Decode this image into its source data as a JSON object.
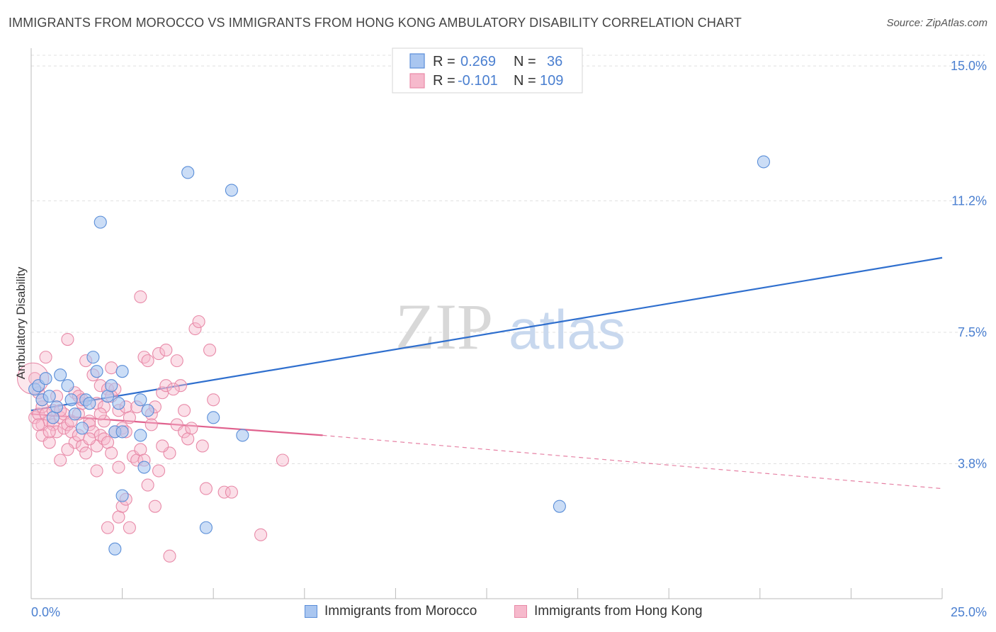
{
  "title": "IMMIGRANTS FROM MOROCCO VS IMMIGRANTS FROM HONG KONG AMBULATORY DISABILITY CORRELATION CHART",
  "source": "Source: ZipAtlas.com",
  "watermark": {
    "zip": "ZIP",
    "atlas": "atlas"
  },
  "legend": {
    "rows": [
      {
        "r_label": "R =",
        "r_value": "0.269",
        "n_label": "N =",
        "n_value": "36"
      },
      {
        "r_label": "R =",
        "r_value": "-0.101",
        "n_label": "N =",
        "n_value": "109"
      }
    ]
  },
  "bottom_legend": {
    "morocco": "Immigrants from Morocco",
    "hongkong": "Immigrants from Hong Kong"
  },
  "colors": {
    "morocco_fill": "#a9c6f0",
    "morocco_stroke": "#5a8ed8",
    "morocco_line": "#2f6fce",
    "hongkong_fill": "#f6b9cc",
    "hongkong_stroke": "#e88aa8",
    "hongkong_line": "#e0628e",
    "tick_text": "#4a7fd0",
    "grid": "#e0e0e0"
  },
  "chart_data": {
    "type": "scatter",
    "title": "IMMIGRANTS FROM MOROCCO VS IMMIGRANTS FROM HONG KONG AMBULATORY DISABILITY CORRELATION CHART",
    "ylabel": "Ambulatory Disability",
    "xlabel": "",
    "xlim": [
      0,
      25
    ],
    "ylim": [
      0,
      15.5
    ],
    "x_tick_labels": [
      "0.0%",
      "25.0%"
    ],
    "y_ticks": [
      3.8,
      7.5,
      11.2,
      15.0
    ],
    "y_tick_labels": [
      "3.8%",
      "7.5%",
      "11.2%",
      "15.0%"
    ],
    "grid": true,
    "legend_position": "top-center",
    "series": [
      {
        "name": "Immigrants from Morocco",
        "r": 0.269,
        "n": 36,
        "trend": {
          "x": [
            0,
            25
          ],
          "y": [
            5.3,
            9.6
          ],
          "style": "solid"
        },
        "points": [
          [
            0.1,
            5.9
          ],
          [
            0.2,
            6.0
          ],
          [
            0.3,
            5.6
          ],
          [
            0.4,
            6.2
          ],
          [
            0.5,
            5.7
          ],
          [
            0.6,
            5.1
          ],
          [
            0.7,
            5.4
          ],
          [
            0.8,
            6.3
          ],
          [
            1.0,
            6.0
          ],
          [
            1.1,
            5.6
          ],
          [
            1.2,
            5.2
          ],
          [
            1.4,
            4.8
          ],
          [
            1.5,
            5.6
          ],
          [
            1.6,
            5.5
          ],
          [
            1.7,
            6.8
          ],
          [
            1.8,
            6.4
          ],
          [
            1.9,
            10.6
          ],
          [
            2.1,
            5.7
          ],
          [
            2.2,
            6.0
          ],
          [
            2.3,
            1.4
          ],
          [
            2.3,
            4.7
          ],
          [
            2.4,
            5.5
          ],
          [
            2.5,
            6.4
          ],
          [
            2.5,
            4.7
          ],
          [
            2.5,
            2.9
          ],
          [
            3.0,
            4.6
          ],
          [
            3.0,
            5.6
          ],
          [
            3.1,
            3.7
          ],
          [
            3.2,
            5.3
          ],
          [
            4.3,
            12.0
          ],
          [
            4.8,
            2.0
          ],
          [
            5.0,
            5.1
          ],
          [
            5.5,
            11.5
          ],
          [
            5.8,
            4.6
          ],
          [
            14.5,
            2.6
          ],
          [
            20.1,
            12.3
          ]
        ]
      },
      {
        "name": "Immigrants from Hong Kong",
        "r": -0.101,
        "n": 109,
        "trend": {
          "x": [
            0,
            8
          ],
          "y": [
            5.2,
            4.6
          ],
          "style": "solid",
          "dashed_extension": {
            "x": [
              8,
              25
            ],
            "y": [
              4.6,
              3.1
            ]
          }
        },
        "points": [
          [
            0.1,
            5.1
          ],
          [
            0.1,
            6.2
          ],
          [
            0.2,
            5.2
          ],
          [
            0.2,
            5.8
          ],
          [
            0.3,
            4.9
          ],
          [
            0.3,
            5.4
          ],
          [
            0.3,
            4.6
          ],
          [
            0.4,
            5.2
          ],
          [
            0.4,
            6.8
          ],
          [
            0.5,
            4.4
          ],
          [
            0.5,
            5.0
          ],
          [
            0.6,
            5.3
          ],
          [
            0.6,
            4.9
          ],
          [
            0.7,
            4.7
          ],
          [
            0.7,
            5.7
          ],
          [
            0.8,
            3.9
          ],
          [
            0.8,
            5.1
          ],
          [
            0.9,
            4.8
          ],
          [
            0.9,
            5.2
          ],
          [
            1.0,
            7.3
          ],
          [
            1.0,
            4.9
          ],
          [
            1.1,
            4.7
          ],
          [
            1.1,
            5.0
          ],
          [
            1.2,
            5.8
          ],
          [
            1.2,
            4.4
          ],
          [
            1.3,
            5.2
          ],
          [
            1.3,
            4.6
          ],
          [
            1.4,
            4.3
          ],
          [
            1.4,
            5.5
          ],
          [
            1.5,
            4.1
          ],
          [
            1.5,
            6.7
          ],
          [
            1.6,
            5.0
          ],
          [
            1.6,
            4.9
          ],
          [
            1.7,
            4.7
          ],
          [
            1.7,
            6.3
          ],
          [
            1.8,
            5.5
          ],
          [
            1.8,
            3.6
          ],
          [
            1.8,
            4.3
          ],
          [
            1.9,
            4.6
          ],
          [
            1.9,
            6.0
          ],
          [
            2.0,
            5.0
          ],
          [
            2.0,
            4.5
          ],
          [
            2.0,
            5.4
          ],
          [
            2.1,
            4.4
          ],
          [
            2.1,
            5.9
          ],
          [
            2.2,
            6.5
          ],
          [
            2.2,
            4.1
          ],
          [
            2.3,
            4.7
          ],
          [
            2.3,
            5.9
          ],
          [
            2.4,
            5.3
          ],
          [
            2.4,
            2.3
          ],
          [
            2.5,
            4.8
          ],
          [
            2.5,
            2.6
          ],
          [
            2.6,
            5.4
          ],
          [
            2.6,
            4.7
          ],
          [
            2.7,
            5.1
          ],
          [
            2.8,
            4.0
          ],
          [
            2.9,
            5.4
          ],
          [
            2.9,
            3.9
          ],
          [
            3.0,
            8.5
          ],
          [
            3.0,
            4.2
          ],
          [
            3.1,
            3.9
          ],
          [
            3.1,
            6.8
          ],
          [
            3.2,
            6.7
          ],
          [
            3.3,
            5.2
          ],
          [
            3.3,
            4.9
          ],
          [
            3.4,
            5.4
          ],
          [
            3.4,
            2.6
          ],
          [
            3.5,
            3.6
          ],
          [
            3.5,
            6.9
          ],
          [
            3.6,
            5.8
          ],
          [
            3.7,
            7.0
          ],
          [
            3.7,
            6.0
          ],
          [
            3.8,
            4.1
          ],
          [
            4.0,
            6.7
          ],
          [
            4.0,
            4.9
          ],
          [
            4.1,
            6.0
          ],
          [
            4.2,
            4.7
          ],
          [
            4.3,
            4.5
          ],
          [
            4.4,
            4.8
          ],
          [
            4.5,
            7.6
          ],
          [
            4.6,
            7.8
          ],
          [
            4.7,
            4.3
          ],
          [
            4.8,
            3.1
          ],
          [
            4.9,
            7.0
          ],
          [
            5.0,
            5.6
          ],
          [
            5.3,
            3.0
          ],
          [
            5.5,
            3.0
          ],
          [
            0.2,
            4.9
          ],
          [
            0.5,
            4.7
          ],
          [
            0.8,
            5.3
          ],
          [
            1.0,
            4.2
          ],
          [
            1.3,
            5.7
          ],
          [
            1.6,
            4.5
          ],
          [
            1.9,
            5.2
          ],
          [
            2.1,
            2.0
          ],
          [
            2.2,
            5.7
          ],
          [
            2.4,
            3.7
          ],
          [
            2.7,
            2.0
          ],
          [
            3.2,
            3.2
          ],
          [
            3.6,
            4.3
          ],
          [
            3.8,
            1.2
          ],
          [
            4.2,
            5.3
          ],
          [
            6.3,
            1.8
          ],
          [
            6.9,
            3.9
          ],
          [
            0.3,
            5.6
          ],
          [
            1.4,
            5.6
          ],
          [
            2.6,
            2.8
          ],
          [
            3.9,
            5.9
          ]
        ]
      }
    ]
  }
}
